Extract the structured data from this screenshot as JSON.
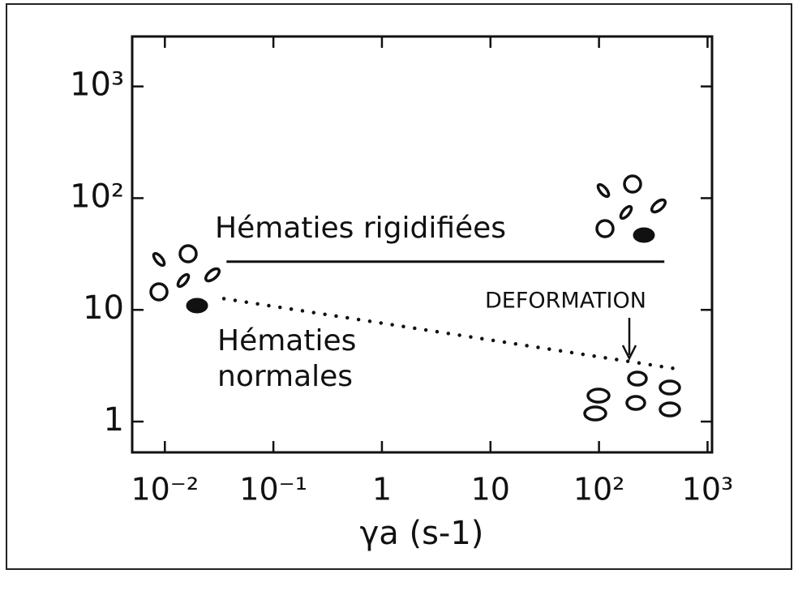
{
  "chart_data": {
    "type": "line",
    "xlog": true,
    "ylog": true,
    "xlabel": "γa (s-1)",
    "xlim": [
      0.005,
      1100
    ],
    "xticks": [
      {
        "value": 0.01,
        "label": "10⁻²"
      },
      {
        "value": 0.1,
        "label": "10⁻¹"
      },
      1,
      10,
      {
        "value": 100,
        "label": "10²"
      },
      {
        "value": 1000,
        "label": "10³"
      }
    ],
    "ylim": [
      0.53,
      2800
    ],
    "yticks": [
      1,
      10,
      {
        "value": 100,
        "label": "10²"
      },
      {
        "value": 1000,
        "label": "10³"
      }
    ],
    "lines": [
      {
        "x": [
          0.037,
          400
        ],
        "y": [
          27,
          27
        ],
        "style": "solid",
        "color": "#111111"
      },
      {
        "x": [
          0.035,
          480
        ],
        "y": [
          12.6,
          3.0
        ],
        "style": "dotted",
        "color": "#111111"
      }
    ],
    "annotations": {
      "rigid": "Hématies rigidifiées",
      "normal": [
        "Hématies",
        "normales"
      ],
      "deformation": "DEFORMATION"
    }
  }
}
